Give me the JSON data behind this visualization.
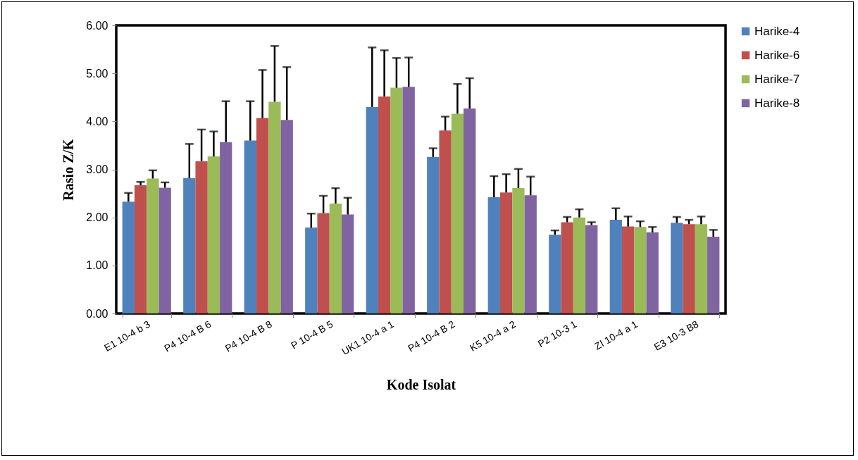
{
  "chart_data": {
    "type": "bar",
    "xlabel": "Kode Isolat",
    "ylabel": "Rasio Z/K",
    "categories": [
      "E1 10-4 b 3",
      "P4 10-4 B 6",
      "P4 10-4 B 8",
      "P 10-4 B 5",
      "UK1 10-4 a 1",
      "P4 10-4 B 2",
      "K5 10-4 a 2",
      "P2 10-3 1",
      "ZI 10-4 a 1",
      "E3 10-3 B8"
    ],
    "series": [
      {
        "name": "Harike-4",
        "color": "#4f81bd",
        "values": [
          2.33,
          2.82,
          3.6,
          1.79,
          4.3,
          3.26,
          2.42,
          1.64,
          1.95,
          1.89
        ],
        "errors": [
          [
            2.33,
            2.51
          ],
          [
            2.82,
            3.53
          ],
          [
            3.6,
            4.42
          ],
          [
            1.79,
            2.08
          ],
          [
            4.3,
            5.54
          ],
          [
            3.26,
            3.44
          ],
          [
            2.42,
            2.86
          ],
          [
            1.64,
            1.73
          ],
          [
            1.95,
            2.19
          ],
          [
            1.89,
            2.01
          ]
        ]
      },
      {
        "name": "Harike-6",
        "color": "#c0504d",
        "values": [
          2.67,
          3.17,
          4.07,
          2.09,
          4.52,
          3.81,
          2.52,
          1.9,
          1.81,
          1.86
        ],
        "errors": [
          [
            2.67,
            2.74
          ],
          [
            3.17,
            3.83
          ],
          [
            4.07,
            5.07
          ],
          [
            2.09,
            2.45
          ],
          [
            4.52,
            5.48
          ],
          [
            3.81,
            4.1
          ],
          [
            2.52,
            2.9
          ],
          [
            1.9,
            2.01
          ],
          [
            1.81,
            2.02
          ],
          [
            1.86,
            1.95
          ]
        ]
      },
      {
        "name": "Harike-7",
        "color": "#9bbb59",
        "values": [
          2.81,
          3.27,
          4.41,
          2.29,
          4.7,
          4.16,
          2.61,
          2.0,
          1.8,
          1.86
        ],
        "errors": [
          [
            2.81,
            2.98
          ],
          [
            3.27,
            3.79
          ],
          [
            4.41,
            5.57
          ],
          [
            2.29,
            2.61
          ],
          [
            4.7,
            5.32
          ],
          [
            4.16,
            4.78
          ],
          [
            2.61,
            3.01
          ],
          [
            2.0,
            2.17
          ],
          [
            1.8,
            1.92
          ],
          [
            1.86,
            2.02
          ]
        ]
      },
      {
        "name": "Harike-8",
        "color": "#8064a2",
        "values": [
          2.62,
          3.57,
          4.03,
          2.06,
          4.72,
          4.27,
          2.46,
          1.84,
          1.69,
          1.6
        ],
        "errors": [
          [
            2.62,
            2.73
          ],
          [
            3.57,
            4.42
          ],
          [
            4.03,
            5.13
          ],
          [
            2.06,
            2.41
          ],
          [
            4.72,
            5.33
          ],
          [
            4.27,
            4.9
          ],
          [
            2.46,
            2.85
          ],
          [
            1.84,
            1.9
          ],
          [
            1.69,
            1.8
          ],
          [
            1.6,
            1.74
          ]
        ]
      }
    ],
    "ylim": [
      0,
      6
    ],
    "yticks": [
      {
        "value": 0,
        "label": "0.00"
      },
      {
        "value": 1,
        "label": "1.00"
      },
      {
        "value": 2,
        "label": "2.00"
      },
      {
        "value": 3,
        "label": "3.00"
      },
      {
        "value": 4,
        "label": "4.00"
      },
      {
        "value": 5,
        "label": "5.00"
      },
      {
        "value": 6,
        "label": "6.00"
      }
    ],
    "legend": "right",
    "grid": false
  }
}
